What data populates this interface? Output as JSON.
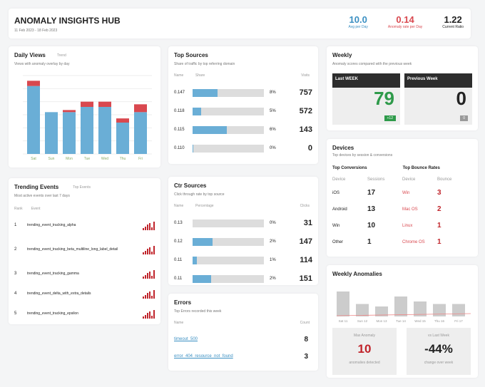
{
  "header": {
    "title": "ANOMALY INSIGHTS HUB",
    "date_range": "11 Feb 2023 - 18 Feb 2023",
    "stats": [
      {
        "value": "10.0",
        "label": "Avg per Day",
        "color": "#3a8fc2"
      },
      {
        "value": "0.14",
        "label": "Anomaly rate per Day",
        "color": "#d9484f"
      },
      {
        "value": "1.22",
        "label": "Current Ratio",
        "color": "#222"
      }
    ]
  },
  "daily": {
    "title": "Daily Views",
    "tag": "Trend",
    "subtitle": "Views with anomaly overlay by day",
    "chart_data": {
      "type": "bar",
      "categories": [
        "Sat",
        "Sun",
        "Mon",
        "Tue",
        "Wed",
        "Thu",
        "Fri"
      ],
      "series": [
        {
          "values": [
            13,
            8,
            8,
            9,
            9,
            6,
            8
          ],
          "color": "#6aaed6"
        },
        {
          "values": [
            1,
            0,
            0.4,
            1,
            1,
            0.8,
            1.5
          ],
          "color": "#d9484f"
        }
      ],
      "ylim": [
        0,
        15
      ]
    }
  },
  "top_sources": {
    "title": "Top Sources",
    "subtitle": "Share of traffic by top referring domain",
    "cols": [
      "Name",
      "Share",
      "Visits"
    ],
    "rows": [
      {
        "name": "0.147",
        "pct": 35,
        "pl": "8%",
        "v": "757"
      },
      {
        "name": "0.118",
        "pct": 12,
        "pl": "5%",
        "v": "572"
      },
      {
        "name": "0.115",
        "pct": 48,
        "pl": "6%",
        "v": "143"
      },
      {
        "name": "0.110",
        "pct": 1,
        "pl": "0%",
        "v": "0"
      }
    ]
  },
  "weekly": {
    "title": "Weekly",
    "subtitle": "Anomaly scores compared with the previous week",
    "tiles": [
      {
        "head": "Last WEEK",
        "value": "79",
        "badge": "+12",
        "color": "#2e9a4a",
        "badge_color": "#2e9a4a"
      },
      {
        "head": "Previous Week",
        "value": "0",
        "badge": "0",
        "color": "#222",
        "badge_color": "#999"
      }
    ]
  },
  "trending": {
    "title": "Trending Events",
    "tag": "Top Events",
    "subtitle": "Most active events over last 7 days",
    "cols": [
      "Rank",
      "Event"
    ],
    "rows": [
      {
        "rank": "1",
        "text": "trending_event_tracking_alpha"
      },
      {
        "rank": "2",
        "text": "trending_event_tracking_beta_multiline_long_label_detail"
      },
      {
        "rank": "3",
        "text": "trending_event_tracking_gamma"
      },
      {
        "rank": "4",
        "text": "trending_event_delta_with_extra_details"
      },
      {
        "rank": "5",
        "text": "trending_event_tracking_epsilon"
      }
    ]
  },
  "ctr": {
    "title": "Ctr Sources",
    "subtitle": "Click through rate by top source",
    "cols": [
      "Name",
      "Percentage",
      "Clicks"
    ],
    "rows": [
      {
        "name": "0.13",
        "pct": 0,
        "pl": "0%",
        "v": "31"
      },
      {
        "name": "0.12",
        "pct": 28,
        "pl": "2%",
        "v": "147"
      },
      {
        "name": "0.11",
        "pct": 6,
        "pl": "1%",
        "v": "114"
      },
      {
        "name": "0.11",
        "pct": 26,
        "pl": "2%",
        "v": "151"
      }
    ]
  },
  "errors": {
    "title": "Errors",
    "subtitle": "Top Errors recorded this week",
    "cols": [
      "Name",
      "Count"
    ],
    "rows": [
      {
        "name": "timeout_500",
        "v": "8"
      },
      {
        "name": "error_404_resource_not_found",
        "v": "3"
      }
    ]
  },
  "devices": {
    "title": "Devices",
    "subtitle": "Top devices by session & conversions",
    "groups": [
      "Top Conversions",
      "Top Bounce Rates"
    ],
    "cols": [
      "Device",
      "Sessions",
      "Device",
      "Bounce"
    ],
    "rows": [
      {
        "a": "iOS",
        "b": "17",
        "c": "Win",
        "d": "3"
      },
      {
        "a": "Android",
        "b": "13",
        "c": "Mac OS",
        "d": "2"
      },
      {
        "a": "Win",
        "b": "10",
        "c": "Linux",
        "d": "1"
      },
      {
        "a": "Other",
        "b": "1",
        "c": "Chrome OS",
        "d": "1"
      }
    ]
  },
  "weekly_anomalies": {
    "title": "Weekly Anomalies",
    "days": [
      "Sat 11",
      "Sun 12",
      "Mon 13",
      "Tue 14",
      "Wed 15",
      "Thu 16",
      "Fri 17"
    ],
    "values": [
      10,
      5,
      4,
      8,
      6,
      5,
      5
    ],
    "tiles": [
      {
        "label": "Max Anomaly",
        "value": "10",
        "sub": "anomalies detected",
        "color": "#c0242b"
      },
      {
        "label": "vs Last Week",
        "value": "-44%",
        "sub": "change over week",
        "color": "#222"
      }
    ]
  }
}
